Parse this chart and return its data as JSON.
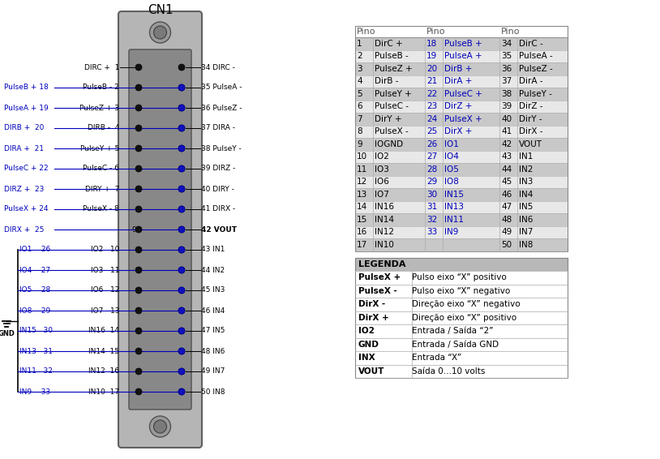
{
  "title": "CN1",
  "bg_color": "#ffffff",
  "blue_color": "#0000bb",
  "table_odd_color": "#c8c8c8",
  "table_even_color": "#e8e8e8",
  "legenda_header_color": "#b8b8b8",
  "table_rows": [
    {
      "p1": "1",
      "s1": "DirC +",
      "p2": "18",
      "s2": "PulseB +",
      "p3": "34",
      "s3": "DirC -"
    },
    {
      "p1": "2",
      "s1": "PulseB -",
      "p2": "19",
      "s2": "PulseA +",
      "p3": "35",
      "s3": "PulseA -"
    },
    {
      "p1": "3",
      "s1": "PulseZ +",
      "p2": "20",
      "s2": "DirB +",
      "p3": "36",
      "s3": "PulseZ -"
    },
    {
      "p1": "4",
      "s1": "DirB -",
      "p2": "21",
      "s2": "DirA +",
      "p3": "37",
      "s3": "DirA -"
    },
    {
      "p1": "5",
      "s1": "PulseY +",
      "p2": "22",
      "s2": "PulseC +",
      "p3": "38",
      "s3": "PulseY -"
    },
    {
      "p1": "6",
      "s1": "PulseC -",
      "p2": "23",
      "s2": "DirZ +",
      "p3": "39",
      "s3": "DirZ -"
    },
    {
      "p1": "7",
      "s1": "DirY +",
      "p2": "24",
      "s2": "PulseX +",
      "p3": "40",
      "s3": "DirY -"
    },
    {
      "p1": "8",
      "s1": "PulseX -",
      "p2": "25",
      "s2": "DirX +",
      "p3": "41",
      "s3": "DirX -"
    },
    {
      "p1": "9",
      "s1": "IOGND",
      "p2": "26",
      "s2": "IO1",
      "p3": "42",
      "s3": "VOUT"
    },
    {
      "p1": "10",
      "s1": "IO2",
      "p2": "27",
      "s2": "IO4",
      "p3": "43",
      "s3": "IN1"
    },
    {
      "p1": "11",
      "s1": "IO3",
      "p2": "28",
      "s2": "IO5",
      "p3": "44",
      "s3": "IN2"
    },
    {
      "p1": "12",
      "s1": "IO6",
      "p2": "29",
      "s2": "IO8",
      "p3": "45",
      "s3": "IN3"
    },
    {
      "p1": "13",
      "s1": "IO7",
      "p2": "30",
      "s2": "IN15",
      "p3": "46",
      "s3": "IN4"
    },
    {
      "p1": "14",
      "s1": "IN16",
      "p2": "31",
      "s2": "IN13",
      "p3": "47",
      "s3": "IN5"
    },
    {
      "p1": "15",
      "s1": "IN14",
      "p2": "32",
      "s2": "IN11",
      "p3": "48",
      "s3": "IN6"
    },
    {
      "p1": "16",
      "s1": "IN12",
      "p2": "33",
      "s2": "IN9",
      "p3": "49",
      "s3": "IN7"
    },
    {
      "p1": "17",
      "s1": "IN10",
      "p2": "",
      "s2": "",
      "p3": "50",
      "s3": "IN8"
    }
  ],
  "legenda_rows": [
    {
      "key": "PulseX +",
      "val": "Pulso eixo “X” positivo"
    },
    {
      "key": "PulseX -",
      "val": "Pulso eixo “X” negativo"
    },
    {
      "key": "DirX -",
      "val": "Direção eixo “X” negativo"
    },
    {
      "key": "DirX +",
      "val": "Direção eixo “X” positivo"
    },
    {
      "key": "IO2",
      "val": "Entrada / Saída “2”"
    },
    {
      "key": "GND",
      "val": "Entrada / Saída GND"
    },
    {
      "key": "INX",
      "val": "Entrada “X”"
    },
    {
      "key": "VOUT",
      "val": "Saída 0...10 volts"
    }
  ],
  "inner_pin_labels": [
    "DIRC +  1",
    "PulseB - 2",
    "PulseZ + 3",
    "DIRB -  4",
    "PulseY + 5",
    "PulseC - 6",
    "DIRY +  7",
    "PulseX - 8",
    "9",
    "IO2   10",
    "IO3   11",
    "IO6   12",
    "IO7   13",
    "IN16  14",
    "IN14  15",
    "IN12  16",
    "IN10  17"
  ],
  "right_labels": [
    "34 DIRC -",
    "35 PulseA -",
    "36 PulseZ -",
    "37 DIRA -",
    "38 PulseY -",
    "39 DIRZ -",
    "40 DIRY -",
    "41 DIRX -",
    "42 VOUT",
    "43 IN1",
    "44 IN2",
    "45 IN3",
    "46 IN4",
    "47 IN5",
    "48 IN6",
    "49 IN7",
    "50 IN8"
  ],
  "blue_left_labels": [
    {
      "text": "PulseB + 18",
      "row": 1
    },
    {
      "text": "PulseA + 19",
      "row": 2
    },
    {
      "text": "DIRB +  20",
      "row": 3
    },
    {
      "text": "DIRA +  21",
      "row": 4
    },
    {
      "text": "PulseC + 22",
      "row": 5
    },
    {
      "text": "DIRZ +  23",
      "row": 6
    },
    {
      "text": "PulseX + 24",
      "row": 7
    },
    {
      "text": "DIRX +  25",
      "row": 8
    }
  ],
  "blue_bracket_labels": [
    {
      "text": "IO1    26",
      "row": 9
    },
    {
      "text": "IO4    27",
      "row": 10
    },
    {
      "text": "IO5    28",
      "row": 11
    },
    {
      "text": "IO8    29",
      "row": 12
    },
    {
      "text": "IN15   30",
      "row": 13
    },
    {
      "text": "IN13   31",
      "row": 14
    },
    {
      "text": "IN11   32",
      "row": 15
    },
    {
      "text": "IN9    33",
      "row": 16
    }
  ]
}
